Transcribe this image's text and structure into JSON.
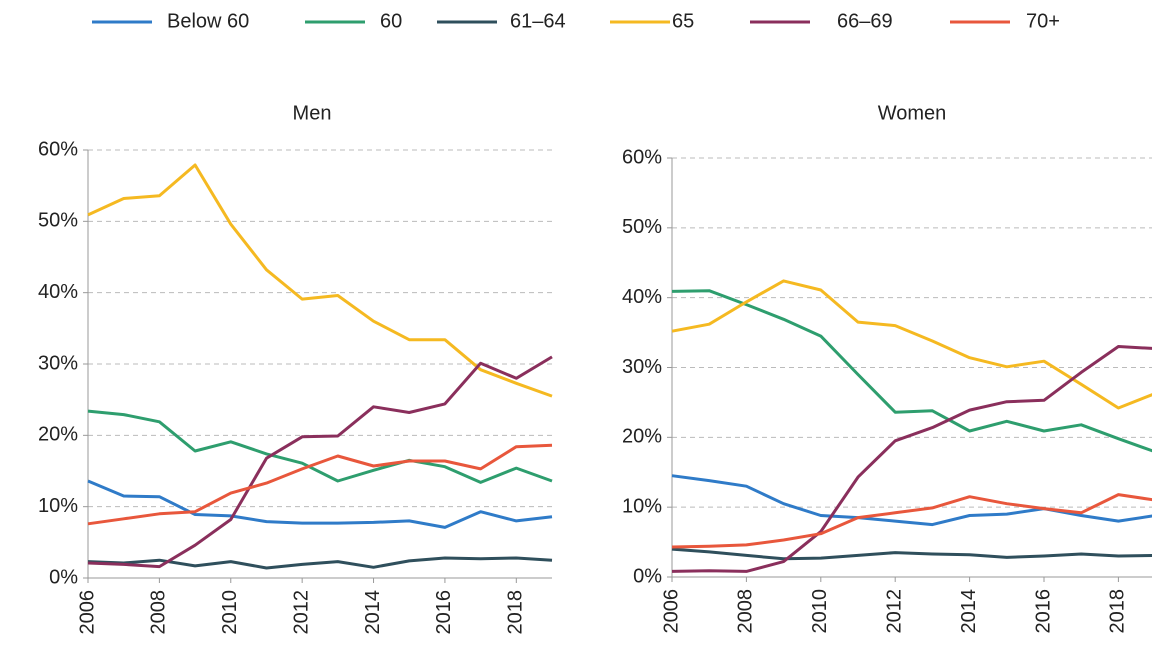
{
  "chart_data": [
    {
      "type": "line",
      "title": "Men",
      "xlim": [
        2006,
        2019
      ],
      "xticks": [
        2006,
        2008,
        2010,
        2012,
        2014,
        2016,
        2018
      ],
      "ylim": [
        0,
        60
      ],
      "yticks": [
        {
          "value": 0,
          "label": "0%"
        },
        {
          "value": 10,
          "label": "10%"
        },
        {
          "value": 20,
          "label": "20%"
        },
        {
          "value": 30,
          "label": "30%"
        },
        {
          "value": 40,
          "label": "40%"
        },
        {
          "value": 50,
          "label": "50%"
        },
        {
          "value": 60,
          "label": "60%"
        }
      ],
      "grid": true,
      "x": [
        2006,
        2007,
        2008,
        2009,
        2010,
        2011,
        2012,
        2013,
        2014,
        2015,
        2016,
        2017,
        2018,
        2019
      ],
      "series": [
        {
          "name": "Below 60",
          "color": "#2f7bc8",
          "values": [
            13.6,
            11.5,
            11.4,
            8.9,
            8.7,
            7.9,
            7.7,
            7.7,
            7.8,
            8.0,
            7.1,
            9.3,
            8.0,
            8.6
          ]
        },
        {
          "name": "60",
          "color": "#2e9e6e",
          "values": [
            23.4,
            22.9,
            21.9,
            17.8,
            19.1,
            17.4,
            16.1,
            13.6,
            15.1,
            16.5,
            15.6,
            13.4,
            15.4,
            13.6
          ]
        },
        {
          "name": "61–64",
          "color": "#2f4f5c",
          "values": [
            2.3,
            2.1,
            2.5,
            1.7,
            2.3,
            1.4,
            1.9,
            2.3,
            1.5,
            2.4,
            2.8,
            2.7,
            2.8,
            2.5
          ]
        },
        {
          "name": "65",
          "color": "#f5b921",
          "values": [
            50.9,
            53.2,
            53.6,
            57.9,
            49.6,
            43.2,
            39.1,
            39.6,
            36.0,
            33.4,
            33.4,
            29.2,
            27.3,
            25.5
          ]
        },
        {
          "name": "66–69",
          "color": "#8a2f5c",
          "values": [
            2.1,
            1.9,
            1.6,
            4.6,
            8.2,
            16.8,
            19.8,
            19.9,
            24.0,
            23.2,
            24.4,
            30.1,
            28.0,
            31.0
          ]
        },
        {
          "name": "70+",
          "color": "#e8573c",
          "values": [
            7.6,
            8.3,
            9.0,
            9.3,
            11.9,
            13.3,
            15.3,
            17.1,
            15.7,
            16.4,
            16.4,
            15.3,
            18.4,
            18.6
          ]
        }
      ]
    },
    {
      "type": "line",
      "title": "Women",
      "xlim": [
        2006,
        2019
      ],
      "xticks": [
        2006,
        2008,
        2010,
        2012,
        2014,
        2016,
        2018
      ],
      "ylim": [
        0,
        60
      ],
      "yticks": [
        {
          "value": 0,
          "label": "0%"
        },
        {
          "value": 10,
          "label": "10%"
        },
        {
          "value": 20,
          "label": "20%"
        },
        {
          "value": 30,
          "label": "30%"
        },
        {
          "value": 40,
          "label": "40%"
        },
        {
          "value": 50,
          "label": "50%"
        },
        {
          "value": 60,
          "label": "60%"
        }
      ],
      "grid": true,
      "x": [
        2006,
        2007,
        2008,
        2009,
        2010,
        2011,
        2012,
        2013,
        2014,
        2015,
        2016,
        2017,
        2018,
        2019
      ],
      "series": [
        {
          "name": "Below 60",
          "color": "#2f7bc8",
          "values": [
            14.5,
            13.8,
            13.0,
            10.5,
            8.8,
            8.5,
            8.0,
            7.5,
            8.8,
            9.0,
            9.8,
            8.8,
            8.0,
            8.8
          ]
        },
        {
          "name": "60",
          "color": "#2e9e6e",
          "values": [
            40.9,
            41.0,
            39.0,
            36.9,
            34.5,
            29.0,
            23.6,
            23.8,
            20.9,
            22.3,
            20.9,
            21.8,
            19.8,
            17.9
          ]
        },
        {
          "name": "61–64",
          "color": "#2f4f5c",
          "values": [
            4.0,
            3.6,
            3.1,
            2.6,
            2.7,
            3.1,
            3.5,
            3.3,
            3.2,
            2.8,
            3.0,
            3.3,
            3.0,
            3.1
          ]
        },
        {
          "name": "65",
          "color": "#f5b921",
          "values": [
            35.2,
            36.2,
            39.4,
            42.4,
            41.1,
            36.5,
            36.0,
            33.8,
            31.4,
            30.1,
            30.9,
            27.6,
            24.2,
            26.3
          ]
        },
        {
          "name": "66–69",
          "color": "#8a2f5c",
          "values": [
            0.8,
            0.9,
            0.8,
            2.2,
            6.5,
            14.3,
            19.5,
            21.4,
            23.9,
            25.1,
            25.3,
            29.3,
            33.0,
            32.7
          ]
        },
        {
          "name": "70+",
          "color": "#e8573c",
          "values": [
            4.3,
            4.4,
            4.6,
            5.3,
            6.2,
            8.5,
            9.2,
            9.9,
            11.5,
            10.5,
            9.8,
            9.2,
            11.8,
            11.0
          ]
        }
      ]
    }
  ]
}
